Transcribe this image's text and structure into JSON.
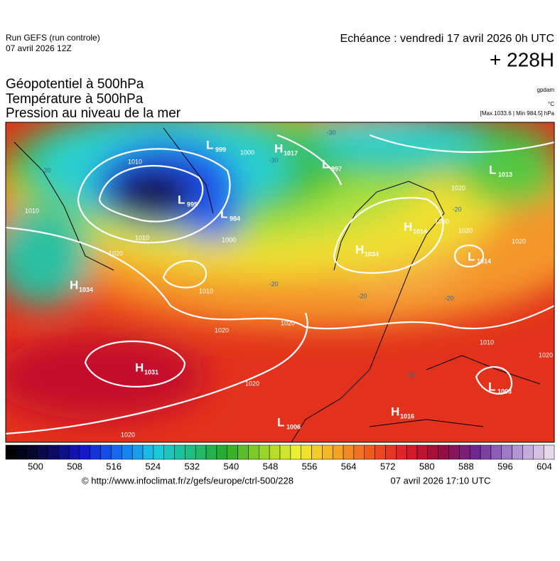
{
  "header": {
    "run": "Run GEFS (run controle)",
    "date": "07 avril 2026 12Z",
    "forecast": "Echéance : vendredi 17 avril 2026 0h UTC",
    "lead": "+ 228H"
  },
  "titles": [
    "Géopotentiel à 500hPa",
    "Température à 500hPa",
    "Pression au niveau de la mer"
  ],
  "units": [
    "gpdam",
    "°C",
    "[Max 1033.6 | Min 984.5] hPa"
  ],
  "centers": [
    {
      "letter": "H",
      "value": 1017
    },
    {
      "letter": "L",
      "value": 999
    },
    {
      "letter": "L",
      "value": 997
    },
    {
      "letter": "L",
      "value": 1013
    },
    {
      "letter": "L",
      "value": 995
    },
    {
      "letter": "L",
      "value": 984
    },
    {
      "letter": "H",
      "value": 1014
    },
    {
      "letter": "H",
      "value": 1034
    },
    {
      "letter": "L",
      "value": 1014
    },
    {
      "letter": "H",
      "value": 1034
    },
    {
      "letter": "H",
      "value": 1031
    },
    {
      "letter": "L",
      "value": 1003
    },
    {
      "letter": "H",
      "value": 1016
    },
    {
      "letter": "L",
      "value": 1006
    }
  ],
  "isobar_labels": [
    1010,
    1000,
    1010,
    1010,
    1020,
    1000,
    1010,
    1020,
    1020,
    1020,
    1020,
    1020,
    1020,
    1020,
    1010,
    1020,
    1030
  ],
  "temperature_labels": [
    -30,
    -30,
    -20,
    -20,
    -20,
    -20,
    -20,
    -20
  ],
  "colorbar": {
    "ticks": [
      500,
      508,
      516,
      524,
      532,
      540,
      548,
      556,
      564,
      572,
      580,
      588,
      596,
      604
    ]
  },
  "footer": {
    "source": "© http://www.infoclimat.fr/z/gefs/europe/ctrl-500/228",
    "generated": "07 avril 2026 17:10 UTC"
  }
}
